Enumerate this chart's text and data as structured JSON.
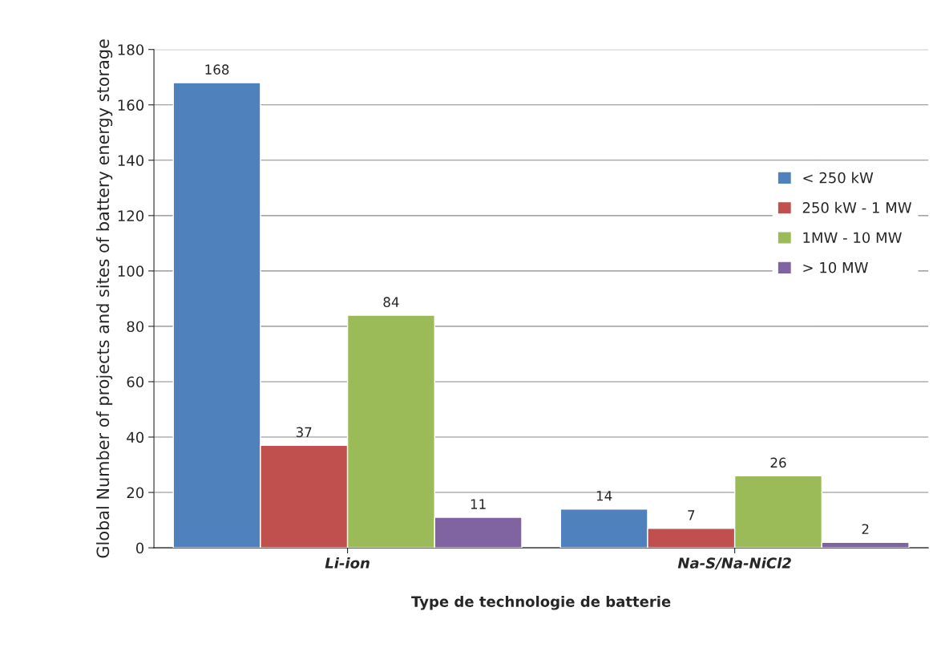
{
  "chart_data": {
    "type": "bar",
    "xlabel": "Type de technologie de batterie",
    "ylabel": "Global Number of projects and sites of battery energy storage",
    "categories": [
      "Li-ion",
      "Na-S/Na-NiCl2"
    ],
    "series": [
      {
        "name": "< 250 kW",
        "color": "#4f81bd",
        "values": [
          168,
          14
        ]
      },
      {
        "name": "250 kW - 1 MW",
        "color": "#c0504d",
        "values": [
          37,
          7
        ]
      },
      {
        "name": "1MW - 10 MW",
        "color": "#9bbb59",
        "values": [
          84,
          26
        ]
      },
      {
        "name": "> 10 MW",
        "color": "#8064a2",
        "values": [
          11,
          2
        ]
      }
    ],
    "ylim": [
      0,
      180
    ],
    "yticks": [
      0,
      20,
      40,
      60,
      80,
      100,
      120,
      140,
      160,
      180
    ],
    "grid": "y",
    "legend": "right",
    "data_labels": true
  }
}
